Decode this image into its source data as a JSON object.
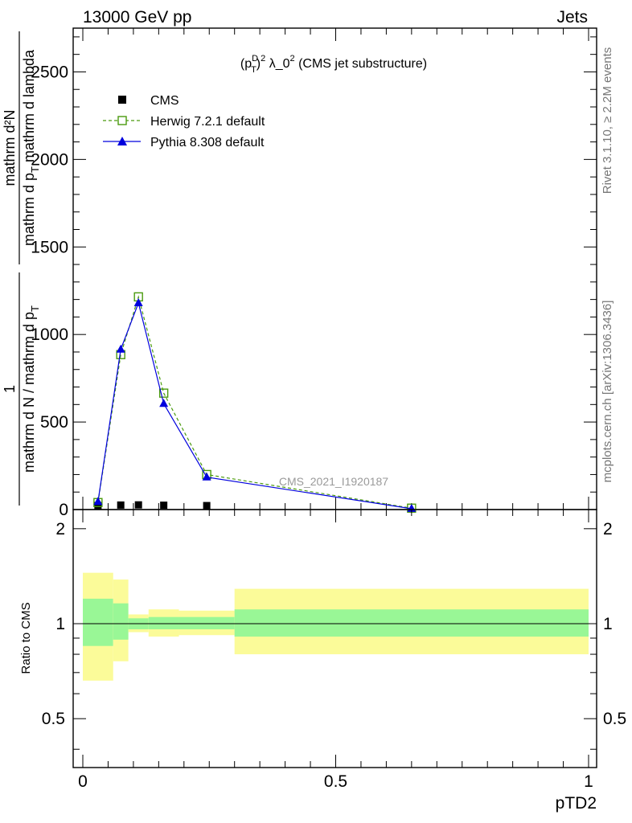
{
  "header": {
    "left": "13000 GeV pp",
    "right": "Jets"
  },
  "side_labels": {
    "rivet": "Rivet 3.1.10, ≥ 2.2M events",
    "mcplots": "mcplots.cern.ch [arXiv:1306.3436]"
  },
  "chart_data": [
    {
      "type": "line",
      "title_parts": {
        "lead": "(p",
        "sup_d": "D",
        "sub_t": "T",
        "close": ")",
        "sup_2": "2",
        "rest": " λ_0",
        "sup_2b": "2",
        "tail": " (CMS jet substructure)"
      },
      "ylabel": {
        "numerator_one": "1",
        "denominator_one": "mathrm d N / mathrm d p",
        "denominator_one_sub": "T",
        "numerator_two": "mathrm d²N",
        "denominator_two": "mathrm d p",
        "denominator_two_sub": "T",
        "denominator_two_tail": " mathrm d lambda"
      },
      "watermark": "CMS_2021_I1920187",
      "xlim": [
        0,
        1
      ],
      "ylim": [
        0,
        2750
      ],
      "y_ticks": [
        {
          "value": 0,
          "label": "0"
        },
        {
          "value": 500,
          "label": "500"
        },
        {
          "value": 1000,
          "label": "1000"
        },
        {
          "value": 1500,
          "label": "1500"
        },
        {
          "value": 2000,
          "label": "2000"
        },
        {
          "value": 2500,
          "label": "2500"
        }
      ],
      "legend": {
        "position": "top-left",
        "entries": [
          {
            "name": "CMS",
            "marker": "filled-square",
            "color": "#000000"
          },
          {
            "name": "Herwig 7.2.1 default",
            "marker": "open-square",
            "color": "#4a9a0e",
            "dash": true
          },
          {
            "name": "Pythia 8.308 default",
            "marker": "filled-triangle",
            "color": "#0000dd",
            "dash": false
          }
        ]
      },
      "series": [
        {
          "name": "CMS",
          "x": [
            0.03,
            0.075,
            0.11,
            0.16,
            0.245
          ],
          "y": [
            2,
            5,
            6,
            4,
            2
          ]
        },
        {
          "name": "Herwig 7.2.1 default",
          "x": [
            0.03,
            0.075,
            0.11,
            0.16,
            0.245,
            0.65
          ],
          "y": [
            40,
            885,
            1215,
            665,
            200,
            8
          ]
        },
        {
          "name": "Pythia 8.308 default",
          "x": [
            0.03,
            0.075,
            0.11,
            0.16,
            0.245,
            0.65
          ],
          "y": [
            45,
            915,
            1180,
            605,
            185,
            5
          ]
        }
      ]
    },
    {
      "type": "area",
      "ylabel": "Ratio to CMS",
      "xlabel": "pTD2",
      "xlim": [
        0,
        1
      ],
      "ylim": [
        0.35,
        2.3
      ],
      "scale": "log",
      "x_ticks": [
        {
          "value": 0,
          "label": "0"
        },
        {
          "value": 0.5,
          "label": "0.5"
        },
        {
          "value": 1,
          "label": "1"
        }
      ],
      "y_ticks": [
        {
          "value": 0.5,
          "label": "0.5"
        },
        {
          "value": 1,
          "label": "1"
        },
        {
          "value": 2,
          "label": "2"
        }
      ],
      "bands": [
        {
          "x0": 0.0,
          "x1": 0.06,
          "stat": [
            0.85,
            1.2
          ],
          "total": [
            0.66,
            1.45
          ]
        },
        {
          "x0": 0.06,
          "x1": 0.09,
          "stat": [
            0.89,
            1.16
          ],
          "total": [
            0.76,
            1.38
          ]
        },
        {
          "x0": 0.09,
          "x1": 0.13,
          "stat": [
            0.96,
            1.04
          ],
          "total": [
            0.94,
            1.07
          ]
        },
        {
          "x0": 0.13,
          "x1": 0.19,
          "stat": [
            0.96,
            1.05
          ],
          "total": [
            0.91,
            1.11
          ]
        },
        {
          "x0": 0.19,
          "x1": 0.3,
          "stat": [
            0.96,
            1.05
          ],
          "total": [
            0.92,
            1.1
          ]
        },
        {
          "x0": 0.3,
          "x1": 1.0,
          "stat": [
            0.91,
            1.11
          ],
          "total": [
            0.8,
            1.29
          ]
        }
      ],
      "colors": {
        "stat": "#99f796",
        "total": "#fbfb99"
      }
    }
  ]
}
